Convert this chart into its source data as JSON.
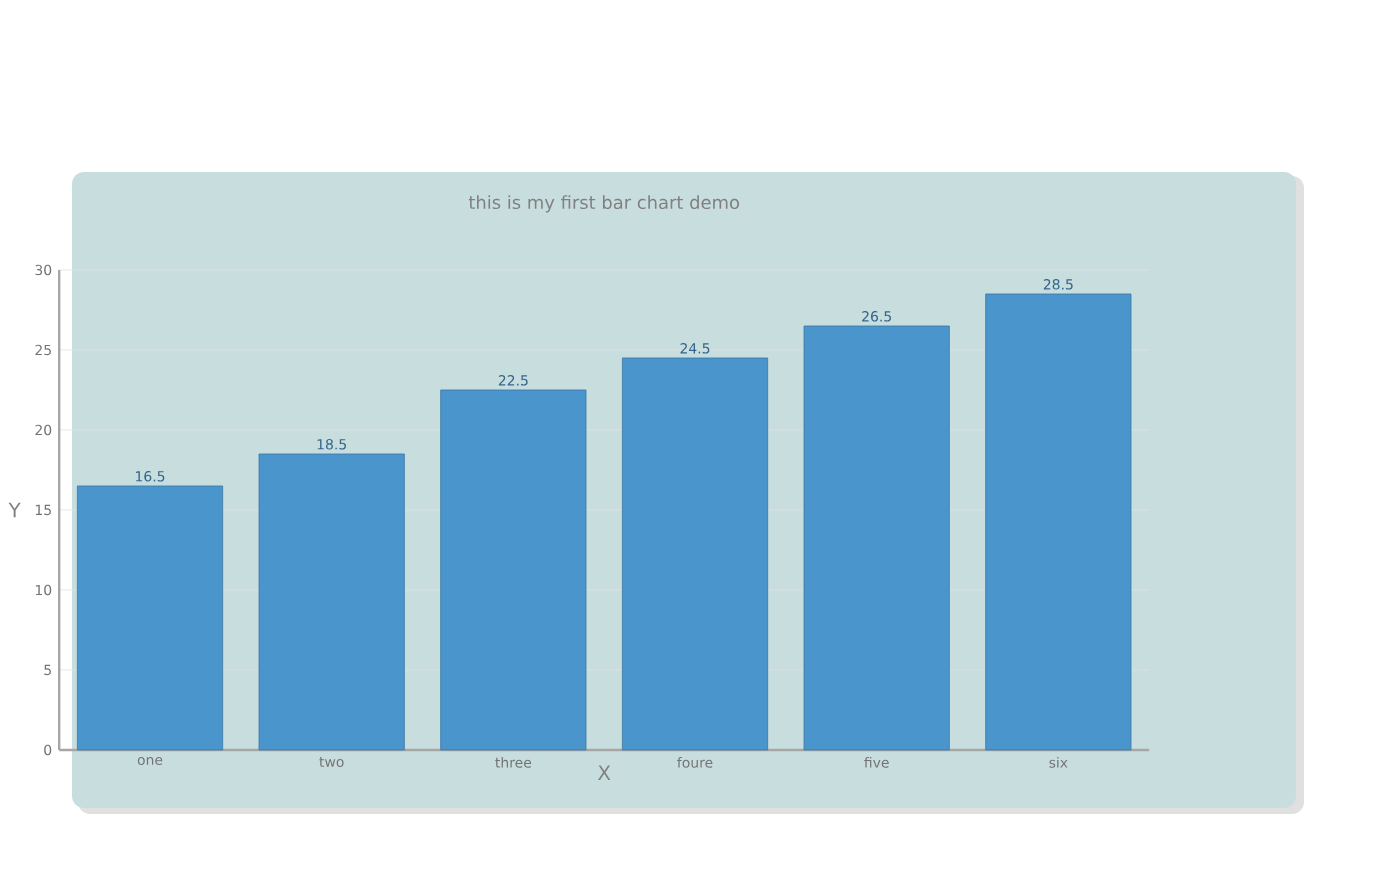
{
  "chart_data": {
    "type": "bar",
    "title": "this is my first bar chart demo",
    "xlabel": "X",
    "ylabel": "Y",
    "categories": [
      "one",
      "two",
      "three",
      "foure",
      "five",
      "six"
    ],
    "values": [
      16.5,
      18.5,
      22.5,
      24.5,
      26.5,
      28.5
    ],
    "color": "#4a95cc",
    "ylim": [
      0,
      30
    ],
    "yticks": [
      0,
      5,
      10,
      15,
      20,
      25,
      30
    ],
    "grid": "y",
    "data_labels": true
  }
}
